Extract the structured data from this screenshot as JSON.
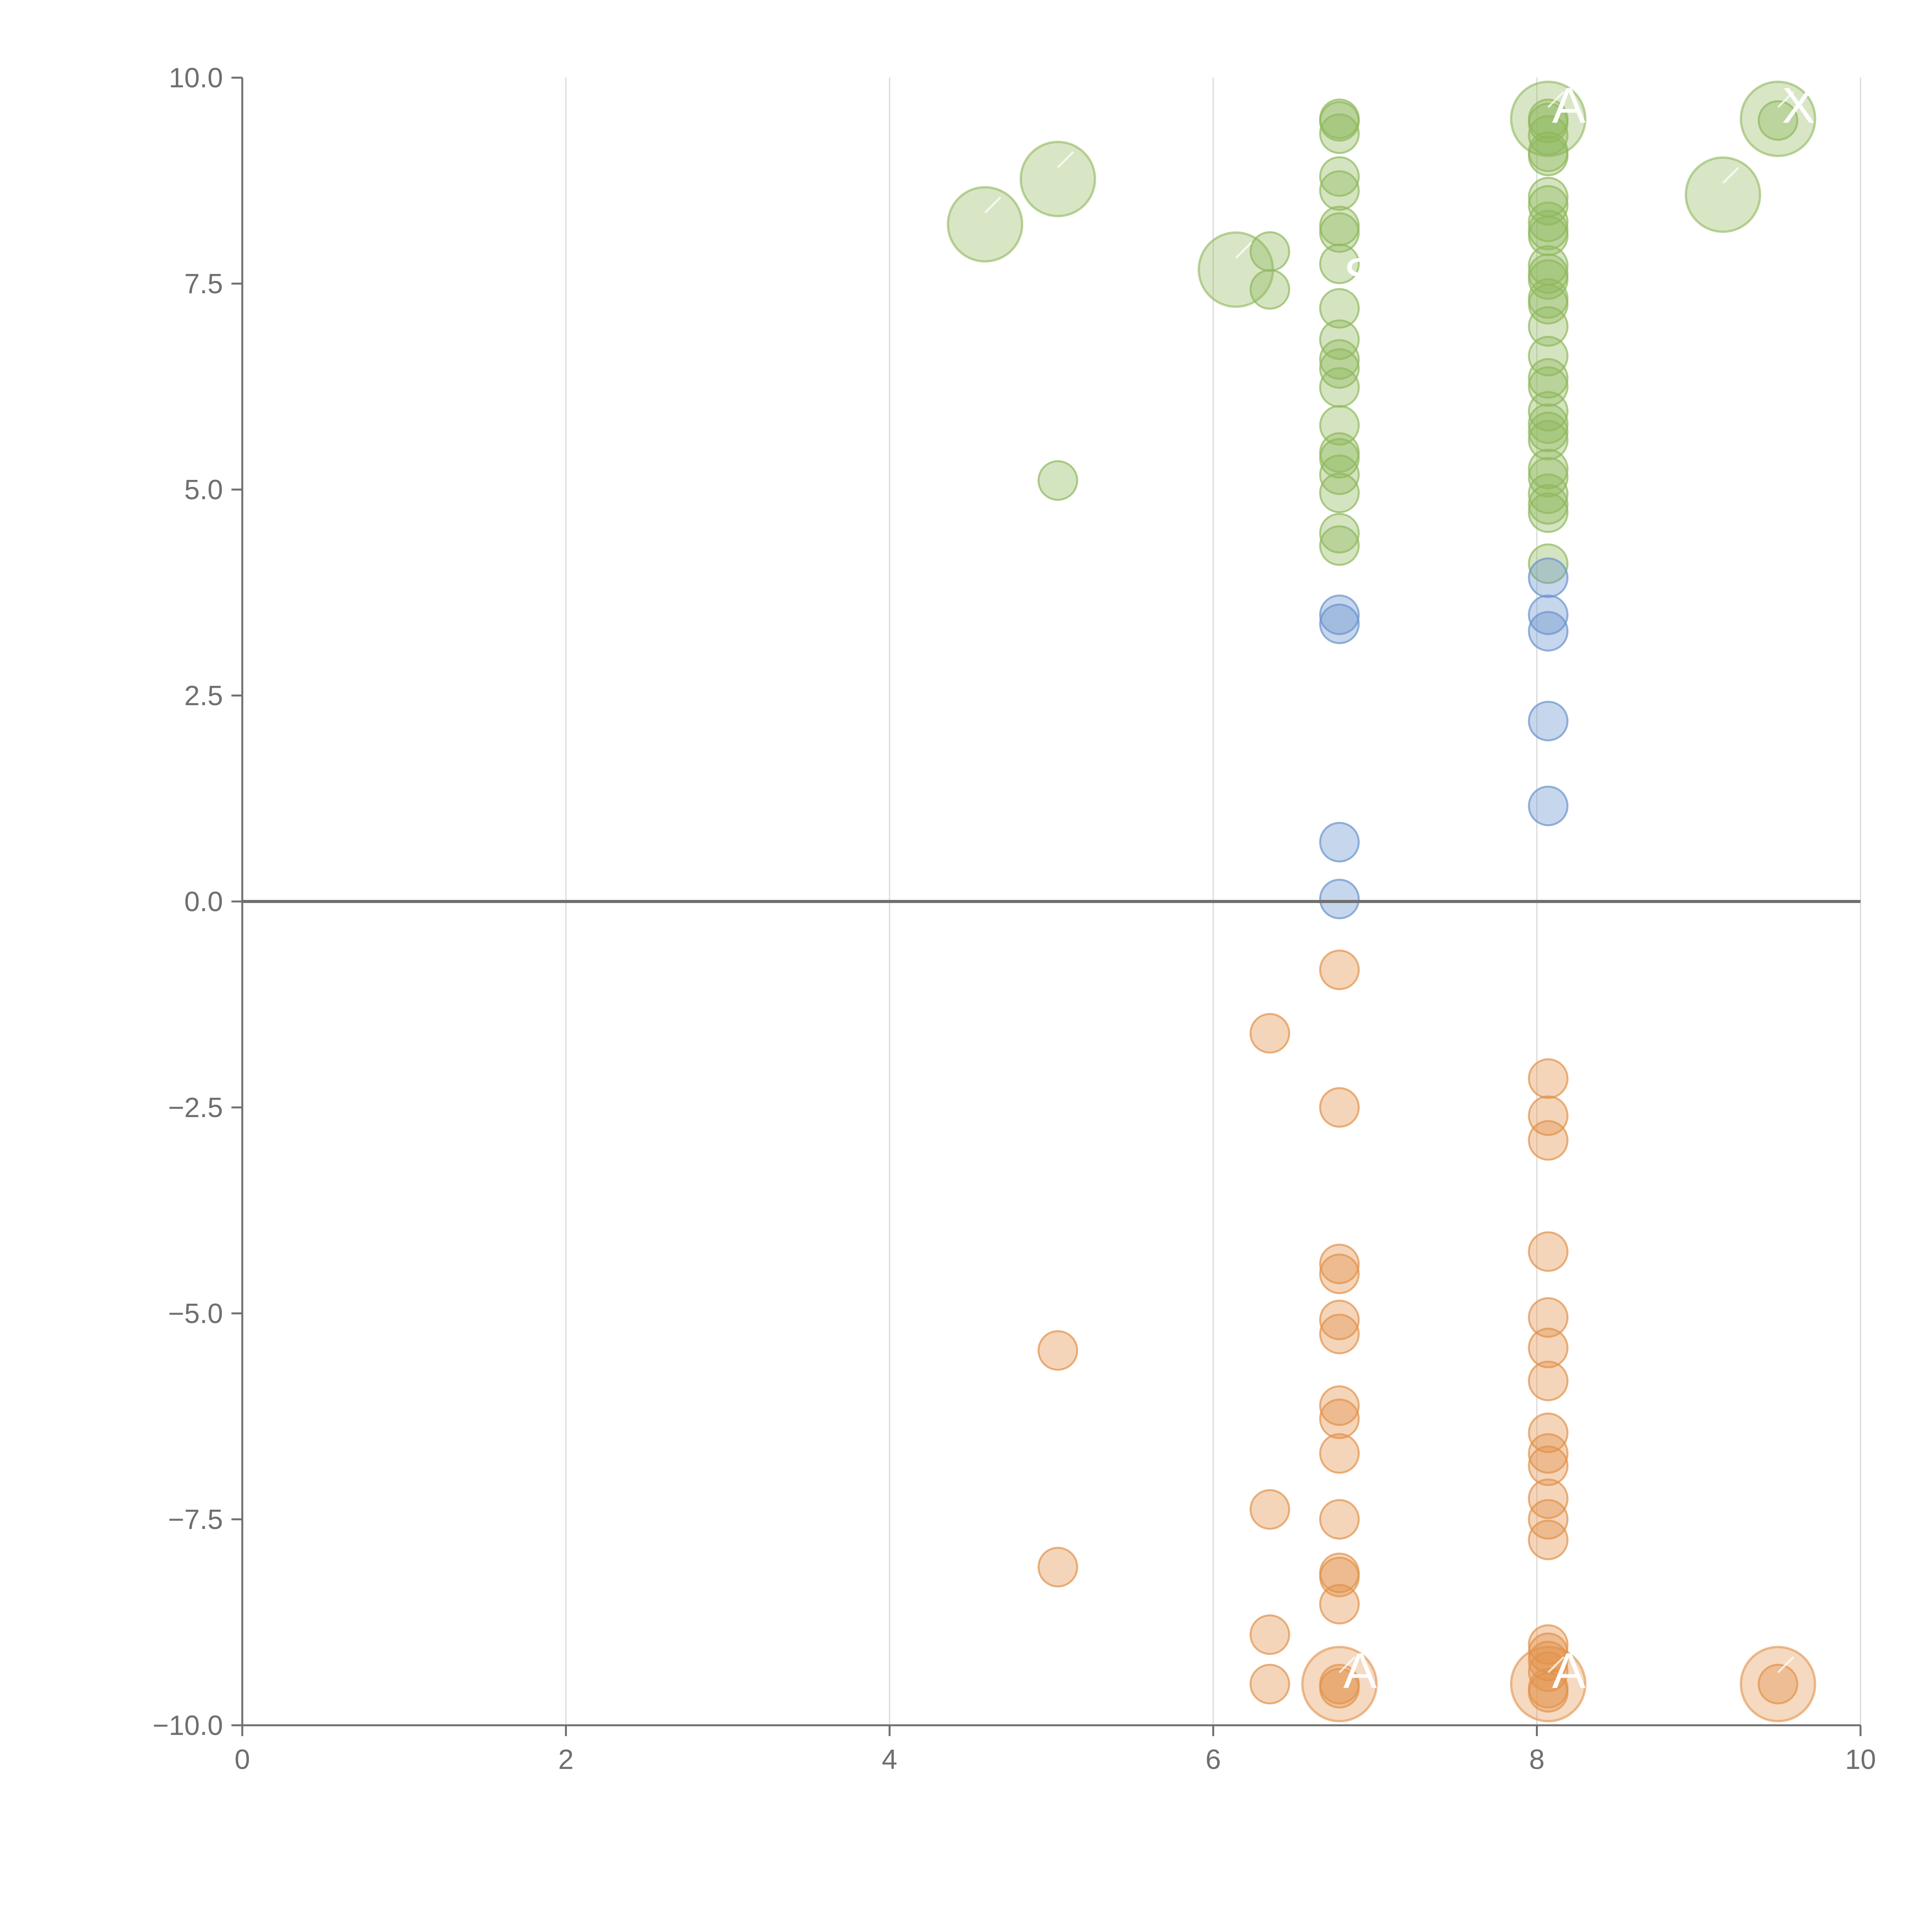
{
  "chart_data": {
    "type": "scatter",
    "title": "",
    "xlabel": "",
    "ylabel": "",
    "xlim": [
      0,
      10
    ],
    "ylim": [
      -10,
      10
    ],
    "grid": "vertical",
    "baseline": 0,
    "x_ticks": [
      "0",
      "2",
      "4",
      "6",
      "8",
      "10"
    ],
    "x_tick_values": [
      0,
      2,
      4,
      6,
      8,
      10
    ],
    "y_ticks": [
      "10.0",
      "7.5",
      "5.0",
      "2.5",
      "0.0",
      "−2.5",
      "−5.0",
      "−7.5",
      "−10.0"
    ],
    "y_tick_values": [
      10,
      7.5,
      5,
      2.5,
      0,
      -2.5,
      -5,
      -7.5,
      -10
    ],
    "colors": {
      "positive": "#8fb85b",
      "middle": "#6a93cc",
      "negative": "#e1914a",
      "axis": "#6f6f6f",
      "grid": "#d9d9d9"
    },
    "series": [
      {
        "name": "high",
        "color_key": "positive",
        "points": [
          [
            6.78,
            9.5
          ],
          [
            6.78,
            9.47
          ],
          [
            6.78,
            9.32
          ],
          [
            6.78,
            8.8
          ],
          [
            6.78,
            8.63
          ],
          [
            6.78,
            8.2
          ],
          [
            6.78,
            8.12
          ],
          [
            6.78,
            7.74
          ],
          [
            6.78,
            7.2
          ],
          [
            6.78,
            6.82
          ],
          [
            6.78,
            6.58
          ],
          [
            6.78,
            6.47
          ],
          [
            6.78,
            6.24
          ],
          [
            6.78,
            5.78
          ],
          [
            6.78,
            5.45
          ],
          [
            6.78,
            5.38
          ],
          [
            6.78,
            5.18
          ],
          [
            6.78,
            4.96
          ],
          [
            6.78,
            4.47
          ],
          [
            6.78,
            4.32
          ],
          [
            8.07,
            9.5
          ],
          [
            8.07,
            9.45
          ],
          [
            8.07,
            9.3
          ],
          [
            8.07,
            9.1
          ],
          [
            8.07,
            9.05
          ],
          [
            8.07,
            8.55
          ],
          [
            8.07,
            8.45
          ],
          [
            8.07,
            8.25
          ],
          [
            8.07,
            8.15
          ],
          [
            8.07,
            8.08
          ],
          [
            8.07,
            7.72
          ],
          [
            8.07,
            7.62
          ],
          [
            8.07,
            7.55
          ],
          [
            8.07,
            7.32
          ],
          [
            8.07,
            7.25
          ],
          [
            8.07,
            6.98
          ],
          [
            8.07,
            6.62
          ],
          [
            8.07,
            6.35
          ],
          [
            8.07,
            6.25
          ],
          [
            8.07,
            5.95
          ],
          [
            8.07,
            5.8
          ],
          [
            8.07,
            5.7
          ],
          [
            8.07,
            5.6
          ],
          [
            8.07,
            5.25
          ],
          [
            8.07,
            5.15
          ],
          [
            8.07,
            4.95
          ],
          [
            8.07,
            4.82
          ],
          [
            8.07,
            4.72
          ],
          [
            8.07,
            4.1
          ],
          [
            5.04,
            5.11
          ],
          [
            6.35,
            7.89
          ],
          [
            6.35,
            7.43
          ],
          [
            9.49,
            9.48
          ]
        ]
      },
      {
        "name": "mid",
        "color_key": "middle",
        "points": [
          [
            6.78,
            3.48
          ],
          [
            6.78,
            3.37
          ],
          [
            6.78,
            0.72
          ],
          [
            6.78,
            0.03
          ],
          [
            8.07,
            3.93
          ],
          [
            8.07,
            3.48
          ],
          [
            8.07,
            3.28
          ],
          [
            8.07,
            2.19
          ],
          [
            8.07,
            1.16
          ]
        ]
      },
      {
        "name": "low",
        "color_key": "negative",
        "points": [
          [
            6.78,
            -0.83
          ],
          [
            6.78,
            -2.5
          ],
          [
            6.78,
            -4.4
          ],
          [
            6.78,
            -4.52
          ],
          [
            6.78,
            -5.08
          ],
          [
            6.78,
            -5.25
          ],
          [
            6.78,
            -6.12
          ],
          [
            6.78,
            -6.28
          ],
          [
            6.78,
            -6.7
          ],
          [
            6.78,
            -7.5
          ],
          [
            6.78,
            -8.15
          ],
          [
            6.78,
            -8.2
          ],
          [
            6.78,
            -8.53
          ],
          [
            6.78,
            -9.5
          ],
          [
            6.78,
            -9.55
          ],
          [
            8.07,
            -2.15
          ],
          [
            8.07,
            -2.6
          ],
          [
            8.07,
            -2.9
          ],
          [
            8.07,
            -4.25
          ],
          [
            8.07,
            -5.05
          ],
          [
            8.07,
            -5.42
          ],
          [
            8.07,
            -5.82
          ],
          [
            8.07,
            -6.45
          ],
          [
            8.07,
            -6.7
          ],
          [
            8.07,
            -6.85
          ],
          [
            8.07,
            -7.25
          ],
          [
            8.07,
            -7.5
          ],
          [
            8.07,
            -7.75
          ],
          [
            8.07,
            -9.02
          ],
          [
            8.07,
            -9.12
          ],
          [
            8.07,
            -9.22
          ],
          [
            8.07,
            -9.35
          ],
          [
            8.07,
            -9.55
          ],
          [
            8.07,
            -9.6
          ],
          [
            6.35,
            -1.6
          ],
          [
            6.35,
            -7.38
          ],
          [
            6.35,
            -8.9
          ],
          [
            6.35,
            -9.5
          ],
          [
            5.04,
            -5.45
          ],
          [
            5.04,
            -8.08
          ],
          [
            9.49,
            -9.5
          ]
        ]
      },
      {
        "name": "large",
        "points": [
          {
            "x": 4.59,
            "y": 8.22,
            "size": "large",
            "color_key": "positive"
          },
          {
            "x": 5.04,
            "y": 8.77,
            "size": "large",
            "color_key": "positive"
          },
          {
            "x": 6.14,
            "y": 7.67,
            "size": "large",
            "color_key": "positive"
          },
          {
            "x": 9.15,
            "y": 8.58,
            "size": "large",
            "color_key": "positive"
          },
          {
            "x": 8.07,
            "y": 9.5,
            "size": "large",
            "color_key": "positive"
          },
          {
            "x": 9.49,
            "y": 9.5,
            "size": "large",
            "color_key": "positive"
          },
          {
            "x": 6.78,
            "y": -9.5,
            "size": "large",
            "color_key": "negative"
          },
          {
            "x": 8.07,
            "y": -9.5,
            "size": "large",
            "color_key": "negative"
          },
          {
            "x": 9.49,
            "y": -9.5,
            "size": "large",
            "color_key": "negative"
          }
        ]
      }
    ],
    "annotations": [
      {
        "text": "A",
        "x": 8.07,
        "y": 9.5
      },
      {
        "text": "X",
        "x": 9.49,
        "y": 9.5
      },
      {
        "text": "S",
        "x": 6.78,
        "y": 7.43
      },
      {
        "text": "A",
        "x": 6.78,
        "y": -9.5
      },
      {
        "text": "A",
        "x": 8.07,
        "y": -9.5
      }
    ]
  }
}
